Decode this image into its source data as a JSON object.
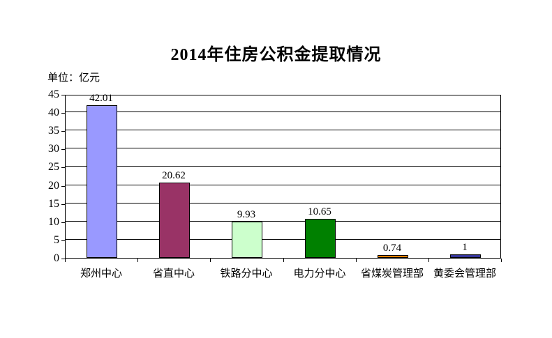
{
  "title": "2014年住房公积金提取情况",
  "unit_label": "单位：亿元",
  "chart_data": {
    "type": "bar",
    "title": "2014年住房公积金提取情况",
    "unit_note": "单位：亿元",
    "categories": [
      "郑州中心",
      "省直中心",
      "铁路分中心",
      "电力分中心",
      "省煤炭管理部",
      "黄委会管理部"
    ],
    "values": [
      42.01,
      20.62,
      9.93,
      10.65,
      0.74,
      1
    ],
    "data_labels": [
      "42.01",
      "20.62",
      "9.93",
      "10.65",
      "0.74",
      "1"
    ],
    "bar_colors": [
      "#9999FF",
      "#993366",
      "#CCFFCC",
      "#008000",
      "#FF8000",
      "#333399"
    ],
    "bar_border_color": "#000000",
    "xlabel": "",
    "ylabel": "单位：亿元",
    "ylim": [
      0,
      45
    ],
    "yticks": [
      0,
      5,
      10,
      15,
      20,
      25,
      30,
      35,
      40,
      45
    ],
    "grid": "horizontal",
    "gridline_color": "#000000",
    "legend": "none",
    "background_color": "#FFFFFF"
  }
}
